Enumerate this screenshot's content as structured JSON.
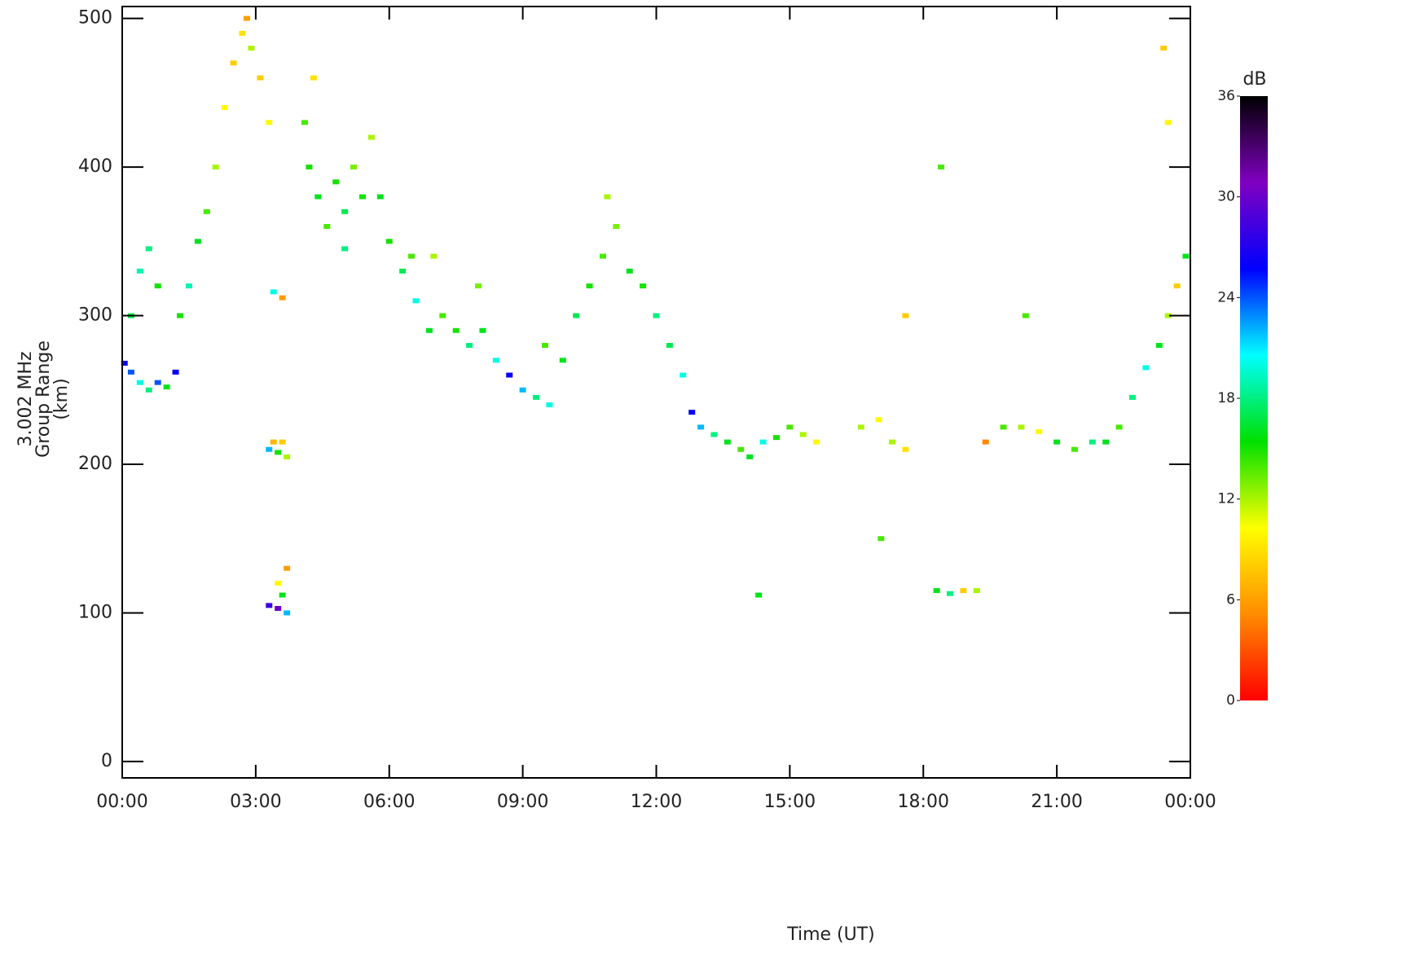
{
  "chart_data": {
    "type": "heatmap-scatter",
    "y_label": [
      "3.002 MHz",
      "Group Range",
      "(km)"
    ],
    "x_label": "Time (UT)",
    "xlim": [
      0,
      24
    ],
    "ylim": [
      -11,
      508
    ],
    "xticks": [
      {
        "value": 0,
        "label": "00:00"
      },
      {
        "value": 3,
        "label": "03:00"
      },
      {
        "value": 6,
        "label": "06:00"
      },
      {
        "value": 9,
        "label": "09:00"
      },
      {
        "value": 12,
        "label": "12:00"
      },
      {
        "value": 15,
        "label": "15:00"
      },
      {
        "value": 18,
        "label": "18:00"
      },
      {
        "value": 21,
        "label": "21:00"
      },
      {
        "value": 24,
        "label": "00:00"
      }
    ],
    "yticks": [
      0,
      100,
      200,
      300,
      400,
      500
    ],
    "colorbar": {
      "label": "dB",
      "lim": [
        0,
        36
      ],
      "ticks": [
        0,
        6,
        12,
        18,
        24,
        30,
        36
      ],
      "colors": [
        "#ff0000",
        "#ff8c00",
        "#ffff00",
        "#00e000",
        "#00ffff",
        "#0000ff",
        "#8000c0",
        "#000000"
      ]
    },
    "series": [
      {
        "x": [
          0.05,
          0.2,
          0.4,
          0.6,
          0.8,
          1.0,
          1.2,
          0.2,
          0.4,
          0.6,
          0.8,
          1.3,
          1.5,
          1.7,
          1.9,
          2.1,
          2.3,
          2.5,
          2.7,
          2.9,
          3.1,
          3.3,
          2.8,
          3.3,
          3.5,
          3.7,
          3.4,
          3.6,
          3.3,
          3.5,
          3.7,
          3.6,
          3.5,
          3.7,
          3.4,
          3.6,
          4.1,
          4.2,
          4.4,
          4.6,
          4.8,
          5.0,
          5.2,
          5.4,
          5.6,
          5.8,
          4.3,
          5.0,
          6.0,
          6.3,
          6.6,
          6.9,
          7.2,
          7.5,
          7.8,
          8.1,
          8.4,
          8.7,
          9.0,
          7.0,
          8.0,
          6.5,
          9.3,
          9.6,
          9.9,
          10.2,
          10.5,
          10.8,
          11.1,
          11.4,
          11.7,
          12.0,
          12.3,
          12.6,
          10.9,
          9.5,
          12.8,
          13.0,
          13.3,
          13.6,
          13.9,
          14.1,
          14.4,
          14.7,
          15.0,
          15.3,
          15.6,
          14.3,
          16.6,
          17.0,
          17.3,
          17.6,
          18.3,
          18.6,
          18.9,
          19.2,
          19.4,
          19.8,
          20.2,
          20.6,
          21.0,
          21.4,
          21.8,
          22.1,
          22.4,
          22.7,
          23.0,
          23.3,
          23.5,
          23.7,
          23.9,
          23.5,
          23.4,
          17.05,
          17.6,
          18.4,
          20.3
        ],
        "y": [
          268,
          262,
          255,
          250,
          255,
          252,
          262,
          300,
          330,
          345,
          320,
          300,
          320,
          350,
          370,
          400,
          440,
          470,
          490,
          480,
          460,
          430,
          500,
          210,
          208,
          205,
          215,
          215,
          105,
          103,
          100,
          112,
          120,
          130,
          316,
          312,
          430,
          400,
          380,
          360,
          390,
          370,
          400,
          380,
          420,
          380,
          460,
          345,
          350,
          330,
          310,
          290,
          300,
          290,
          280,
          290,
          270,
          260,
          250,
          340,
          320,
          340,
          245,
          240,
          270,
          300,
          320,
          340,
          360,
          330,
          320,
          300,
          280,
          260,
          380,
          280,
          235,
          225,
          220,
          215,
          210,
          205,
          215,
          218,
          225,
          220,
          215,
          112,
          225,
          230,
          215,
          210,
          115,
          113,
          115,
          115,
          215,
          225,
          225,
          222,
          215,
          210,
          215,
          215,
          225,
          245,
          265,
          280,
          300,
          320,
          340,
          430,
          480,
          150,
          300,
          400,
          300
        ],
        "values": [
          26,
          24,
          20,
          18,
          24,
          16,
          26,
          17,
          19,
          18,
          15,
          15,
          19,
          16,
          14,
          12,
          10,
          8,
          9,
          12,
          8,
          10,
          6,
          22,
          15,
          12,
          7,
          8,
          28,
          30,
          22,
          16,
          10,
          6,
          20,
          6,
          14,
          15,
          16,
          14,
          15,
          17,
          13,
          15,
          12,
          16,
          9,
          18,
          15,
          17,
          20,
          16,
          14,
          15,
          18,
          16,
          20,
          26,
          22,
          12,
          13,
          14,
          18,
          20,
          16,
          17,
          15,
          14,
          13,
          16,
          15,
          18,
          17,
          20,
          12,
          14,
          26,
          22,
          18,
          16,
          14,
          16,
          20,
          15,
          14,
          12,
          10,
          16,
          12,
          10,
          12,
          9,
          16,
          18,
          8,
          12,
          5,
          14,
          12,
          10,
          16,
          14,
          18,
          16,
          14,
          18,
          20,
          16,
          12,
          8,
          16,
          10,
          8,
          14,
          8,
          14,
          14
        ]
      }
    ]
  }
}
